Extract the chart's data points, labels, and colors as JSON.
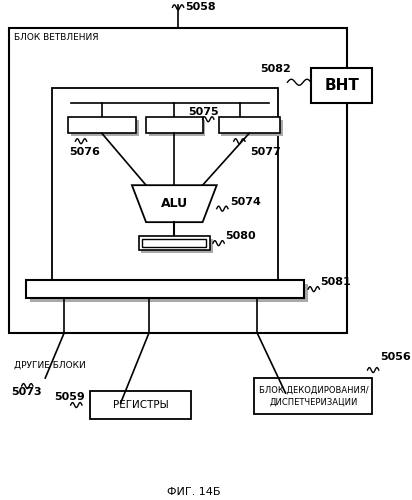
{
  "title": "ФИГ. 14Б",
  "background_color": "#ffffff",
  "label_5058": "5058",
  "label_5082": "5082",
  "label_5075": "5075",
  "label_5077": "5077",
  "label_5076": "5076",
  "label_5074": "5074",
  "label_5080": "5080",
  "label_5081": "5081",
  "label_5073": "5073",
  "label_5059": "5059",
  "label_5056": "5056",
  "label_BHT": "ВНТ",
  "label_ALU": "ALU",
  "label_blok_vetvleniya": "БЛОК ВЕТВЛЕНИЯ",
  "label_drugie_bloki": "ДРУГИЕ БЛОКИ",
  "label_registry": "РЕГИСТРЫ",
  "label_blok_dekodirovaniya": "БЛОК ДЕКОДИРОВАНИЯ/\nДИСПЕТЧЕРИЗАЦИИ"
}
